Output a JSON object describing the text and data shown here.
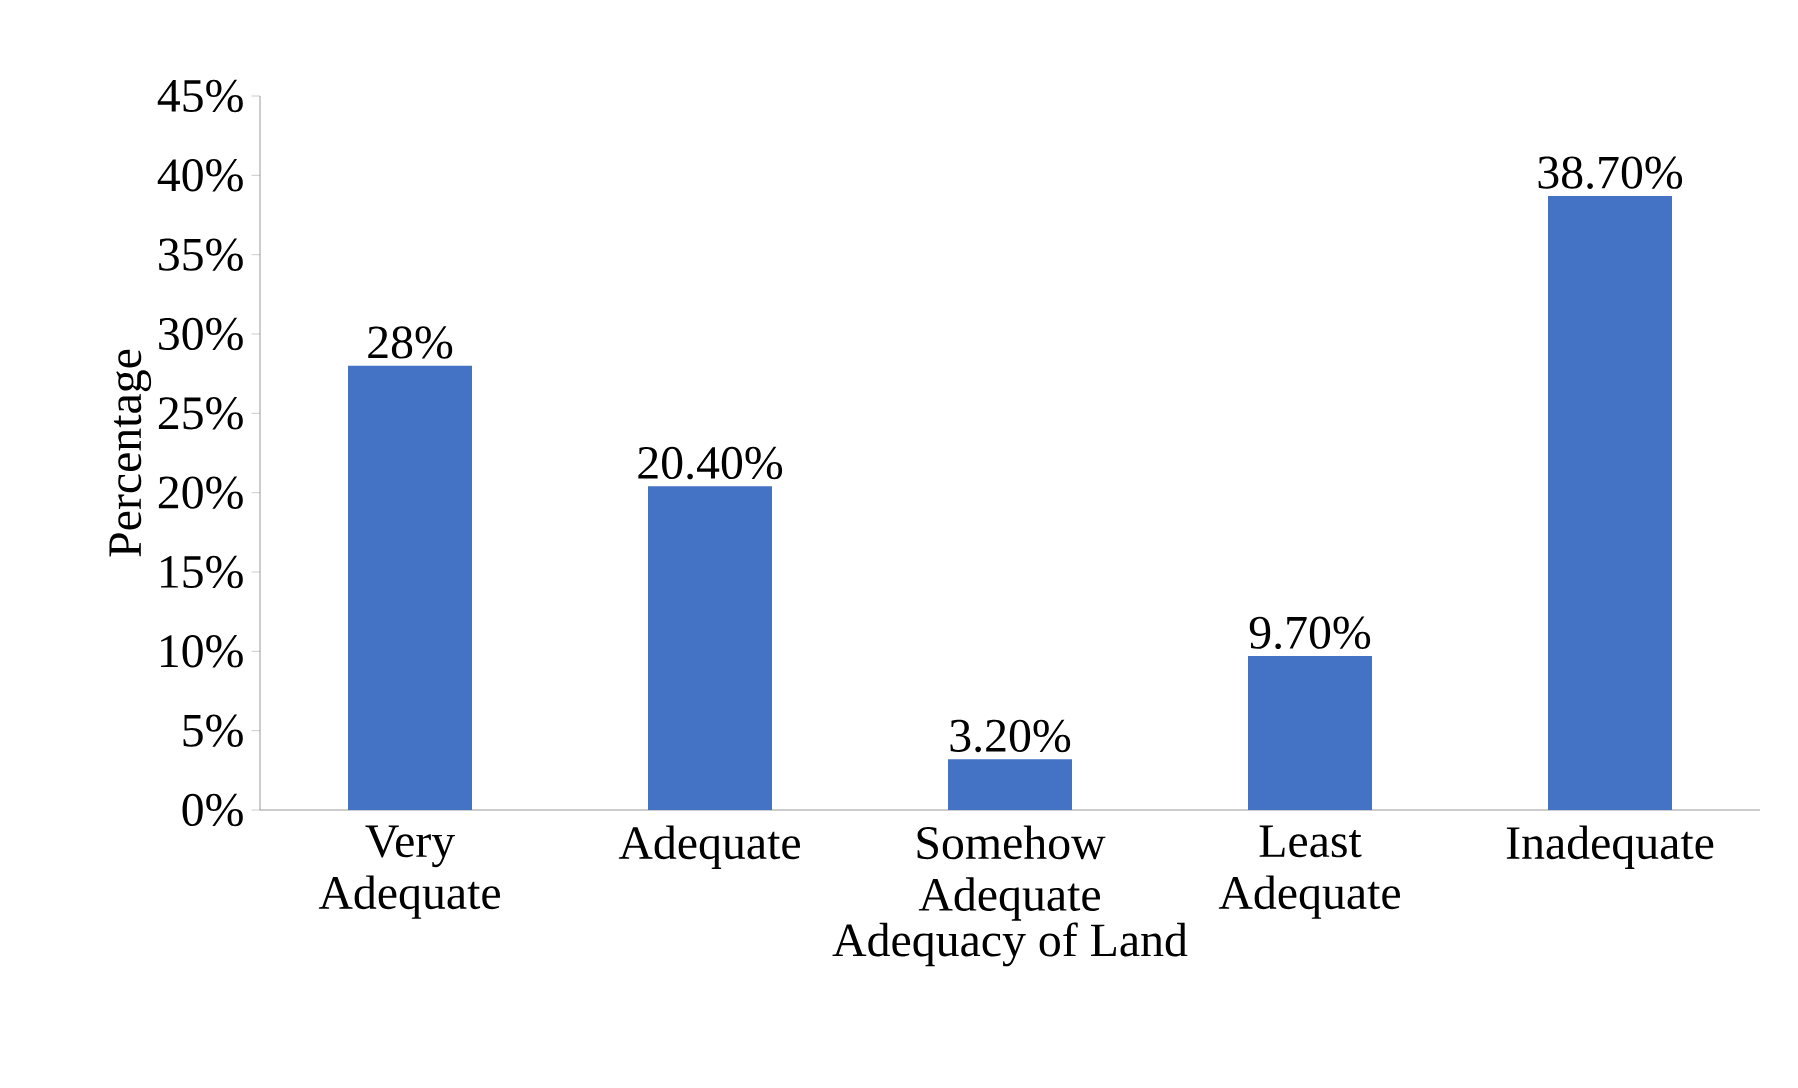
{
  "chart_data": {
    "type": "bar",
    "xlabel": "Adequacy of Land",
    "ylabel": "Percentage",
    "categories": [
      "Very Adequate",
      "Adequate",
      "Somehow Adequate",
      "Least Adequate",
      "Inadequate"
    ],
    "values": [
      28,
      20.4,
      3.2,
      9.7,
      38.7
    ],
    "value_labels": [
      "28%",
      "20.40%",
      "3.20%",
      "9.70%",
      "38.70%"
    ],
    "color": "#4472c4",
    "ylim": [
      0,
      45
    ],
    "yticks": [
      {
        "value": 0,
        "label": "0%"
      },
      {
        "value": 5,
        "label": "5%"
      },
      {
        "value": 10,
        "label": "10%"
      },
      {
        "value": 15,
        "label": "15%"
      },
      {
        "value": 20,
        "label": "20%"
      },
      {
        "value": 25,
        "label": "25%"
      },
      {
        "value": 30,
        "label": "30%"
      },
      {
        "value": 35,
        "label": "35%"
      },
      {
        "value": 40,
        "label": "40%"
      },
      {
        "value": 45,
        "label": "45%"
      }
    ]
  }
}
